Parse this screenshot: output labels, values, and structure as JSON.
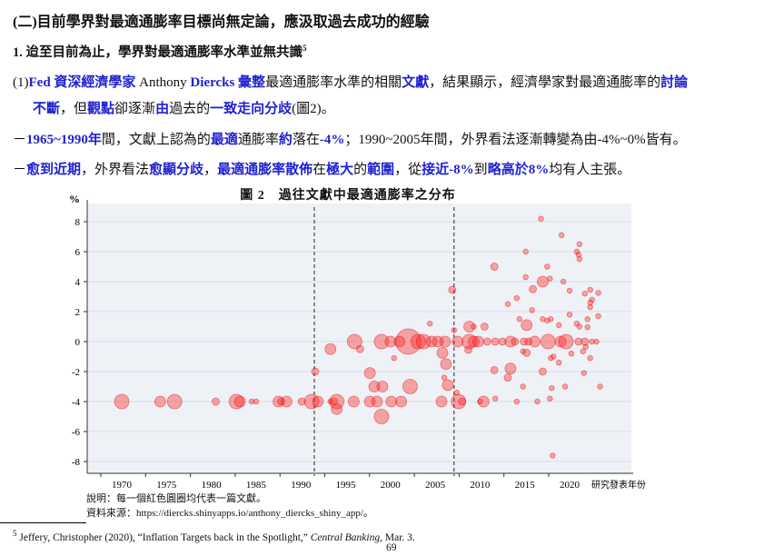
{
  "heading": "(二)目前學界對最適通膨率目標尚無定論，應汲取過去成功的經驗",
  "subheading": "1. 迨至目前為止，學界對最適通膨率水準並無共識",
  "subheading_footnote_ref": "5",
  "paragraphs": [
    [
      {
        "t": "(1)",
        "hl": false
      },
      {
        "t": "Fed 資深經濟學家",
        "hl": true
      },
      {
        "t": " Anthony ",
        "hl": false
      },
      {
        "t": "Diercks 彙整",
        "hl": true
      },
      {
        "t": "最適通膨率水準的相關",
        "hl": false
      },
      {
        "t": "文獻",
        "hl": true
      },
      {
        "t": "，結果顯示，經濟學家對最適通膨率的",
        "hl": false
      },
      {
        "t": "討論",
        "hl": true
      }
    ],
    [
      {
        "t": "不斷",
        "hl": true
      },
      {
        "t": "，但",
        "hl": false
      },
      {
        "t": "觀點",
        "hl": true
      },
      {
        "t": "卻逐漸",
        "hl": false
      },
      {
        "t": "由",
        "hl": true
      },
      {
        "t": "過去的",
        "hl": false
      },
      {
        "t": "一致走向分歧",
        "hl": true
      },
      {
        "t": "(圖2)。",
        "hl": false
      }
    ],
    [
      {
        "t": "－",
        "hl": false
      },
      {
        "t": "1965~1990年",
        "hl": true
      },
      {
        "t": "間，文獻上認為的",
        "hl": false
      },
      {
        "t": "最適",
        "hl": true
      },
      {
        "t": "通膨率",
        "hl": false
      },
      {
        "t": "約",
        "hl": true
      },
      {
        "t": "落在",
        "hl": false
      },
      {
        "t": "-4%",
        "hl": true
      },
      {
        "t": "；1990~2005年間，外界看法逐漸轉變為由-4%~0%皆有。",
        "hl": false
      }
    ],
    [
      {
        "t": "－",
        "hl": false
      },
      {
        "t": "愈到近期",
        "hl": true
      },
      {
        "t": "，外界看法",
        "hl": false
      },
      {
        "t": "愈顯分歧",
        "hl": true
      },
      {
        "t": "，",
        "hl": false
      },
      {
        "t": "最適通膨率散佈",
        "hl": true
      },
      {
        "t": "在",
        "hl": false
      },
      {
        "t": "極大",
        "hl": true
      },
      {
        "t": "的",
        "hl": false
      },
      {
        "t": "範圍",
        "hl": true
      },
      {
        "t": "，從",
        "hl": false
      },
      {
        "t": "接近-8%",
        "hl": true
      },
      {
        "t": "到",
        "hl": false
      },
      {
        "t": "略高於8%",
        "hl": true
      },
      {
        "t": "均有人主張。",
        "hl": false
      }
    ]
  ],
  "figure": {
    "title": "圖 2　過往文獻中最適通膨率之分布",
    "note": "說明：每一個紅色圓圈均代表一篇文獻。",
    "source": "資料來源：https://diercks.shinyapps.io/anthony_diercks_shiny_app/。"
  },
  "chart_data": {
    "type": "scatter",
    "title": "圖 2　過往文獻中最適通膨率之分布",
    "xlabel": "研究發表年份",
    "ylabel": "%",
    "xlim": [
      1964.5,
      2027
    ],
    "ylim": [
      -9,
      9.3
    ],
    "xticks": [
      1970,
      1975,
      1980,
      1985,
      1990,
      1995,
      2000,
      2005,
      2010,
      2015,
      2020
    ],
    "yticks": [
      8,
      6,
      4,
      2,
      0,
      -2,
      -4,
      -6,
      -8
    ],
    "grid": "horizontal",
    "vlines": [
      1991.5,
      2007.1
    ],
    "colors": {
      "marker": "#ff2020",
      "background": "#eef1f6"
    },
    "points_fields": [
      "year",
      "optimal_inflation",
      "relative_size"
    ],
    "points": [
      [
        1970,
        -4,
        4
      ],
      [
        1974.3,
        -4,
        3
      ],
      [
        1975.9,
        -4,
        4
      ],
      [
        1980.5,
        -4,
        2
      ],
      [
        1982.8,
        -4,
        4
      ],
      [
        1983.2,
        -4,
        3
      ],
      [
        1984.5,
        -4,
        1
      ],
      [
        1985,
        -4,
        1
      ],
      [
        1987.5,
        -4,
        3
      ],
      [
        1987.8,
        -4,
        2
      ],
      [
        1988.4,
        -4,
        3
      ],
      [
        1990.1,
        -4,
        2
      ],
      [
        1991.2,
        -4,
        4
      ],
      [
        1991.9,
        -4,
        3
      ],
      [
        1991.6,
        -2,
        2
      ],
      [
        1993.3,
        -0.5,
        3
      ],
      [
        1993.3,
        -4,
        1
      ],
      [
        1993.7,
        -4,
        2
      ],
      [
        1994,
        -4,
        4
      ],
      [
        1994,
        -4.5,
        3
      ],
      [
        1995.9,
        -4,
        3
      ],
      [
        1996,
        0,
        4
      ],
      [
        1996.6,
        -0.5,
        2
      ],
      [
        1997.7,
        -2.1,
        3
      ],
      [
        1998.2,
        -3,
        3
      ],
      [
        1999.1,
        -3,
        3
      ],
      [
        1997.7,
        -4,
        3
      ],
      [
        1998.5,
        -4,
        3
      ],
      [
        1999,
        -5,
        4
      ],
      [
        2000.1,
        -4,
        3
      ],
      [
        2001.2,
        -4,
        3
      ],
      [
        2002.2,
        -3,
        4
      ],
      [
        2000.4,
        -1.1,
        1
      ],
      [
        2004.4,
        1.2,
        1
      ],
      [
        1999,
        0,
        4
      ],
      [
        2000,
        0,
        3
      ],
      [
        2001,
        0,
        3
      ],
      [
        2002,
        0,
        6
      ],
      [
        2003.1,
        0,
        4
      ],
      [
        2003.7,
        0,
        4
      ],
      [
        2004.6,
        0,
        3
      ],
      [
        2005.3,
        0,
        3
      ],
      [
        2006.1,
        0,
        3
      ],
      [
        2007.5,
        0,
        3
      ],
      [
        2008.8,
        0,
        4
      ],
      [
        2009.3,
        0,
        3
      ],
      [
        2009.8,
        0,
        3
      ],
      [
        2010.8,
        0,
        2
      ],
      [
        2011.7,
        0,
        2
      ],
      [
        2012.5,
        0,
        2
      ],
      [
        2013.4,
        0,
        3
      ],
      [
        2013.9,
        0,
        2
      ],
      [
        2014.9,
        0,
        2
      ],
      [
        2015.4,
        0,
        2
      ],
      [
        2016.1,
        0,
        3
      ],
      [
        2017.6,
        0,
        4
      ],
      [
        2019,
        0,
        3
      ],
      [
        2019.6,
        0,
        4
      ],
      [
        2021,
        0,
        2
      ],
      [
        2021.7,
        0,
        2
      ],
      [
        2022.5,
        0,
        1
      ],
      [
        2023,
        0,
        1
      ],
      [
        2005.8,
        -0.75,
        3
      ],
      [
        2006.2,
        -1.5,
        3
      ],
      [
        2006,
        -2.4,
        1
      ],
      [
        2006.4,
        -2.9,
        3
      ],
      [
        2005.7,
        -4,
        3
      ],
      [
        2006.9,
        3.45,
        2
      ],
      [
        2007.1,
        0.76,
        1
      ],
      [
        2007.6,
        -4,
        4
      ],
      [
        2008,
        -4,
        2
      ],
      [
        2007.4,
        -3.4,
        1
      ],
      [
        2008.8,
        1,
        3
      ],
      [
        2010.5,
        1,
        2
      ],
      [
        2009.3,
        1,
        1
      ],
      [
        2008.7,
        -0.55,
        2
      ],
      [
        2010,
        -4,
        1
      ],
      [
        2010.4,
        -4,
        3
      ],
      [
        2011.6,
        5,
        2
      ],
      [
        2011.6,
        -1.9,
        2
      ],
      [
        2013.4,
        -1.8,
        3
      ],
      [
        2013.1,
        -2.4,
        2
      ],
      [
        2011.7,
        -3.8,
        1
      ],
      [
        2013.1,
        2.5,
        1
      ],
      [
        2014.1,
        2.9,
        1
      ],
      [
        2014.4,
        1.5,
        1
      ],
      [
        2014.1,
        -4,
        1
      ],
      [
        2014.8,
        -0.65,
        1
      ],
      [
        2015.2,
        -0.75,
        2
      ],
      [
        2015.2,
        1.1,
        3
      ],
      [
        2014.8,
        -3,
        1
      ],
      [
        2015.1,
        6,
        1
      ],
      [
        2015.1,
        4.3,
        1
      ],
      [
        2015.9,
        3.5,
        2
      ],
      [
        2015.8,
        2.1,
        1
      ],
      [
        2016.4,
        -4,
        1
      ],
      [
        2016.8,
        8.2,
        1
      ],
      [
        2017,
        4,
        3
      ],
      [
        2017.8,
        4.2,
        1
      ],
      [
        2017.5,
        5,
        1
      ],
      [
        2017,
        1.5,
        1
      ],
      [
        2017.5,
        1.4,
        1
      ],
      [
        2017.9,
        1.5,
        1
      ],
      [
        2017,
        -2,
        2
      ],
      [
        2018,
        -3.1,
        1
      ],
      [
        2017.8,
        -3.8,
        1
      ],
      [
        2017.9,
        -1.1,
        1
      ],
      [
        2018.2,
        -1,
        1
      ],
      [
        2018.8,
        -1.4,
        1
      ],
      [
        2018.1,
        -7.6,
        1
      ],
      [
        2019.1,
        7.1,
        1
      ],
      [
        2019.3,
        4,
        1
      ],
      [
        2020,
        3.4,
        1
      ],
      [
        2020,
        1.8,
        1
      ],
      [
        2018.8,
        1.1,
        1
      ],
      [
        2019.5,
        -3,
        1
      ],
      [
        2020.2,
        -0.8,
        1
      ],
      [
        2020.8,
        6,
        1
      ],
      [
        2021,
        5.8,
        1
      ],
      [
        2021.1,
        6.5,
        1
      ],
      [
        2021.1,
        5.5,
        1
      ],
      [
        2020.8,
        1.2,
        1
      ],
      [
        2021.1,
        1,
        1
      ],
      [
        2021.7,
        3.2,
        1
      ],
      [
        2022,
        1.5,
        1
      ],
      [
        2022,
        0.96,
        1
      ],
      [
        2021.5,
        -0.65,
        1
      ],
      [
        2021.8,
        -0.35,
        1
      ],
      [
        2022.3,
        -1.1,
        1
      ],
      [
        2021.6,
        -2.1,
        1
      ],
      [
        2022.3,
        3.45,
        1
      ],
      [
        2022.5,
        2.8,
        1
      ],
      [
        2022.3,
        2.6,
        1
      ],
      [
        2022.3,
        2.3,
        1
      ],
      [
        2023.2,
        3.25,
        1
      ],
      [
        2023.2,
        1.7,
        1
      ],
      [
        2023.4,
        -3,
        1
      ]
    ]
  },
  "footnote": {
    "number": "5",
    "text": "Jeffery, Christopher (2020), “Inflation Targets back in the Spotlight,” ",
    "journal": "Central Banking",
    "tail": ", Mar. 3."
  },
  "page_number": "69"
}
